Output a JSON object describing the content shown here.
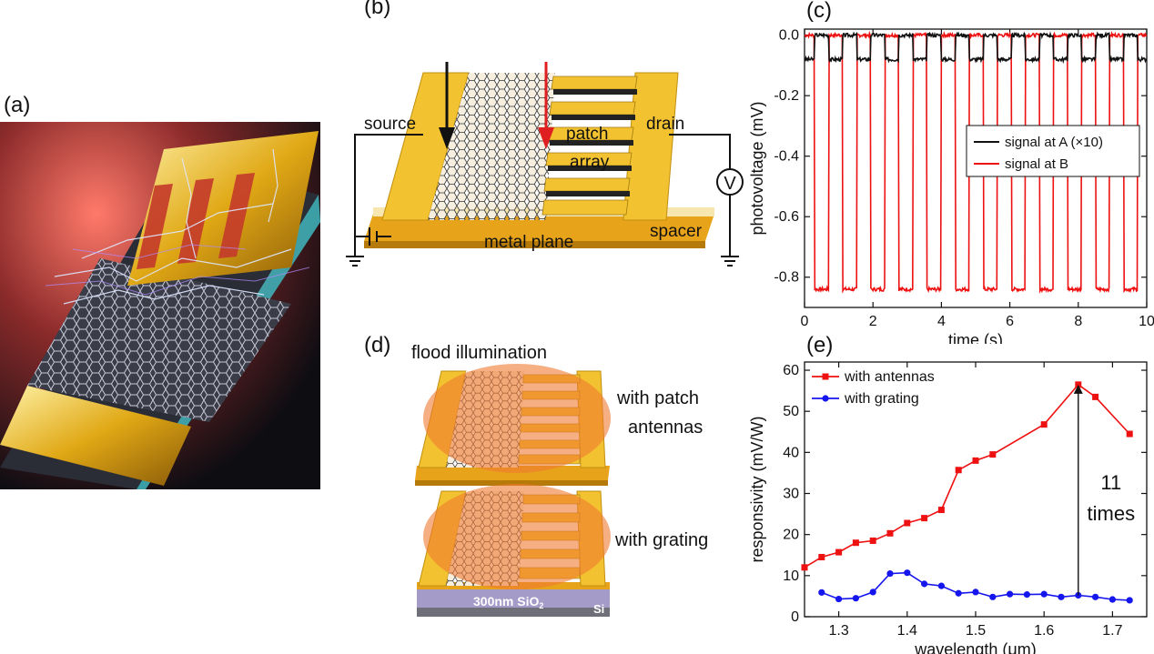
{
  "panels": {
    "a": "(a)",
    "b": "(b)",
    "c": "(c)",
    "d": "(d)",
    "e": "(e)"
  },
  "diagram_b": {
    "source": "source",
    "drain": "drain",
    "patch": "patch",
    "array": "array",
    "spacer": "spacer",
    "metal_plane": "metal plane",
    "voltmeter": "V"
  },
  "diagram_d": {
    "title": "flood illumination",
    "top_label_1": "with patch",
    "top_label_2": "antennas",
    "bottom_label": "with grating",
    "substrate": "300nm SiO",
    "substrate_sub": "2",
    "si": "Si"
  },
  "colors": {
    "gold": "#f2c230",
    "red_series": "#ee1111",
    "blue_series": "#1515ee",
    "black_series": "#111111",
    "orange_spot": "#f07a30"
  },
  "chart_data": [
    {
      "type": "line",
      "panel": "c",
      "xlabel": "time (s)",
      "ylabel": "photovoltage (mV)",
      "xlim": [
        0,
        10
      ],
      "ylim": [
        -0.9,
        0.02
      ],
      "xticks": [
        "0",
        "2",
        "4",
        "6",
        "8",
        "10"
      ],
      "yticks": [
        "0.0",
        "-0.2",
        "-0.4",
        "-0.6",
        "-0.8"
      ],
      "legend_position": "right",
      "square_wave": {
        "period": 0.82,
        "first_fall": 0.3,
        "low_fraction": 0.5,
        "cycles": 12
      },
      "series": [
        {
          "name": "signal at A (×10)",
          "color": "#111111",
          "high": 0.0,
          "low": -0.08
        },
        {
          "name": "signal at B",
          "color": "#ee1111",
          "high": 0.0,
          "low": -0.84
        }
      ]
    },
    {
      "type": "line",
      "panel": "e",
      "xlabel": "wavelength (μm)",
      "ylabel": "responsivity (mV/W)",
      "xlim": [
        1.25,
        1.75
      ],
      "ylim": [
        0,
        62
      ],
      "xticks": [
        "1.3",
        "1.4",
        "1.5",
        "1.6",
        "1.7"
      ],
      "yticks": [
        "0",
        "10",
        "20",
        "30",
        "40",
        "50",
        "60"
      ],
      "legend_position": "top-left",
      "annotation": {
        "line1": "11",
        "line2": "times",
        "x": 1.65,
        "from": 5.2,
        "to": 56.5
      },
      "series": [
        {
          "name": "with antennas",
          "color": "#ee1111",
          "marker": "square",
          "x": [
            1.25,
            1.275,
            1.3,
            1.325,
            1.35,
            1.375,
            1.4,
            1.425,
            1.45,
            1.475,
            1.5,
            1.525,
            1.6,
            1.65,
            1.675,
            1.725
          ],
          "y": [
            12,
            14.5,
            15.7,
            18,
            18.5,
            20.3,
            22.8,
            24,
            26,
            35.7,
            38,
            39.5,
            46.8,
            56.5,
            53.5,
            44.5
          ]
        },
        {
          "name": "with grating",
          "color": "#1515ee",
          "marker": "circle",
          "x": [
            1.275,
            1.3,
            1.325,
            1.35,
            1.375,
            1.4,
            1.425,
            1.45,
            1.475,
            1.5,
            1.525,
            1.55,
            1.575,
            1.6,
            1.625,
            1.65,
            1.675,
            1.7,
            1.725
          ],
          "y": [
            5.9,
            4.3,
            4.5,
            6,
            10.5,
            10.7,
            8,
            7.5,
            5.7,
            6,
            4.8,
            5.5,
            5.4,
            5.5,
            4.8,
            5.2,
            4.8,
            4.2,
            4
          ]
        }
      ]
    }
  ]
}
